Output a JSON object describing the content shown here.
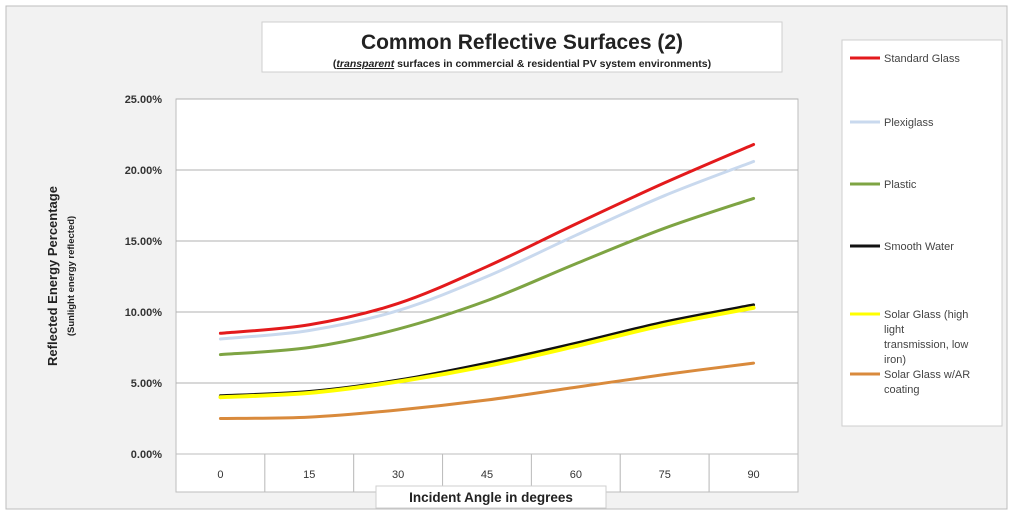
{
  "chart_data": {
    "type": "line",
    "title": "Common Reflective Surfaces (2)",
    "subtitle_emphasis": "transparent",
    "subtitle_rest": " surfaces in commercial & residential PV system environments)",
    "subtitle_open": "(",
    "xlabel": "Incident Angle in degrees",
    "ylabel": "Reflected Energy Percentage",
    "ylabel_sub": "(Sunlight energy reflected)",
    "categories": [
      "0",
      "15",
      "30",
      "45",
      "60",
      "75",
      "90"
    ],
    "y_ticks": [
      "0.00%",
      "5.00%",
      "10.00%",
      "15.00%",
      "20.00%",
      "25.00%"
    ],
    "ylim": [
      0,
      25
    ],
    "grid": true,
    "legend_position": "right",
    "series": [
      {
        "name": "Standard Glass",
        "color": "#e31a1c",
        "values": [
          8.5,
          9.1,
          10.6,
          13.2,
          16.2,
          19.1,
          21.8
        ]
      },
      {
        "name": "Plexiglass",
        "color": "#c9d9ee",
        "values": [
          8.1,
          8.7,
          10.1,
          12.5,
          15.4,
          18.2,
          20.6
        ]
      },
      {
        "name": "Plastic",
        "color": "#7ea443",
        "values": [
          7.0,
          7.5,
          8.8,
          10.8,
          13.4,
          15.9,
          18.0
        ]
      },
      {
        "name": "Smooth Water",
        "color": "#111111",
        "values": [
          4.1,
          4.4,
          5.2,
          6.4,
          7.8,
          9.3,
          10.5
        ]
      },
      {
        "name": "Solar Glass (high light transmission, low iron)",
        "color": "#ffff00",
        "values": [
          4.0,
          4.3,
          5.1,
          6.2,
          7.6,
          9.1,
          10.3
        ]
      },
      {
        "name": "Solar Glass w/AR coating",
        "color": "#d98a3c",
        "values": [
          2.5,
          2.6,
          3.1,
          3.8,
          4.7,
          5.6,
          6.4
        ]
      }
    ]
  }
}
